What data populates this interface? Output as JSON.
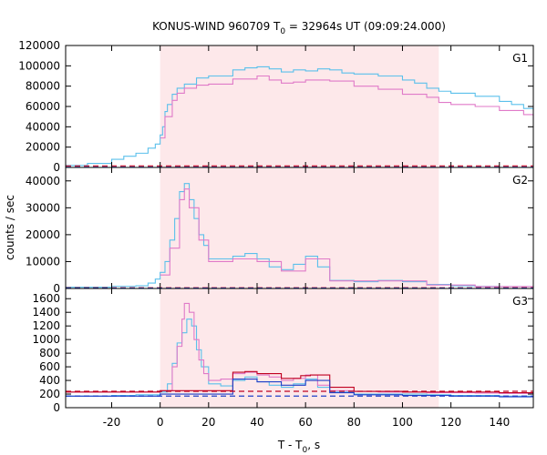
{
  "chart_data": {
    "type": "line",
    "title_main": "KONUS-WIND 960709 T",
    "title_sub": "0",
    "title_rest": " = 32964s UT (09:09:24.000)",
    "xlabel_main": "T - T",
    "xlabel_sub": "0",
    "xlabel_rest": ", s",
    "ylabel": "counts / sec",
    "xlim": [
      -39,
      154
    ],
    "xticks": [
      -20,
      0,
      20,
      40,
      60,
      80,
      100,
      120,
      140
    ],
    "shaded_interval": [
      0,
      115
    ],
    "colors": {
      "shade": "#fde8ea",
      "cyan": "#5bc0eb",
      "pink": "#e07ac8",
      "red": "#c00020",
      "blue": "#2040c8",
      "frame": "#000000"
    },
    "panels": [
      {
        "label": "G1",
        "ylim": [
          0,
          120000
        ],
        "yticks": [
          0,
          20000,
          40000,
          60000,
          80000,
          100000,
          120000
        ],
        "series": [
          {
            "color": "cyan",
            "points": [
              [
                -39,
                2000
              ],
              [
                -30,
                4000
              ],
              [
                -20,
                8000
              ],
              [
                -15,
                11000
              ],
              [
                -10,
                14000
              ],
              [
                -5,
                19000
              ],
              [
                -2,
                23000
              ],
              [
                0,
                32000
              ],
              [
                1,
                40000
              ],
              [
                2,
                55000
              ],
              [
                3,
                62000
              ],
              [
                5,
                72000
              ],
              [
                7,
                78000
              ],
              [
                10,
                82000
              ],
              [
                15,
                88000
              ],
              [
                20,
                90000
              ],
              [
                30,
                96000
              ],
              [
                35,
                98000
              ],
              [
                40,
                99000
              ],
              [
                45,
                97000
              ],
              [
                50,
                94000
              ],
              [
                55,
                96000
              ],
              [
                60,
                95000
              ],
              [
                65,
                97000
              ],
              [
                70,
                96000
              ],
              [
                75,
                93000
              ],
              [
                80,
                92000
              ],
              [
                90,
                90000
              ],
              [
                100,
                86000
              ],
              [
                105,
                83000
              ],
              [
                110,
                78000
              ],
              [
                115,
                75000
              ],
              [
                120,
                73000
              ],
              [
                130,
                70000
              ],
              [
                140,
                65000
              ],
              [
                145,
                62000
              ],
              [
                150,
                58000
              ],
              [
                154,
                56000
              ]
            ]
          },
          {
            "color": "pink",
            "points": [
              [
                0,
                29000
              ],
              [
                2,
                50000
              ],
              [
                5,
                66000
              ],
              [
                7,
                73000
              ],
              [
                10,
                78000
              ],
              [
                15,
                81000
              ],
              [
                20,
                82000
              ],
              [
                30,
                87000
              ],
              [
                40,
                90000
              ],
              [
                45,
                86000
              ],
              [
                50,
                83000
              ],
              [
                55,
                84000
              ],
              [
                60,
                86000
              ],
              [
                70,
                85000
              ],
              [
                80,
                80000
              ],
              [
                90,
                77000
              ],
              [
                100,
                72000
              ],
              [
                110,
                69000
              ],
              [
                115,
                64000
              ],
              [
                120,
                62000
              ],
              [
                130,
                60000
              ],
              [
                140,
                56000
              ],
              [
                150,
                52000
              ],
              [
                154,
                47000
              ]
            ]
          },
          {
            "color": "red",
            "points": [
              [
                -39,
                1500
              ],
              [
                154,
                1500
              ]
            ],
            "dashed": true
          },
          {
            "color": "blue",
            "points": [
              [
                -39,
                300
              ],
              [
                154,
                300
              ]
            ],
            "dashed": true
          }
        ]
      },
      {
        "label": "G2",
        "ylim": [
          0,
          45000
        ],
        "yticks": [
          0,
          10000,
          20000,
          30000,
          40000
        ],
        "series": [
          {
            "color": "cyan",
            "points": [
              [
                -39,
                500
              ],
              [
                -20,
                800
              ],
              [
                -10,
                1000
              ],
              [
                -5,
                2000
              ],
              [
                -2,
                3500
              ],
              [
                0,
                6000
              ],
              [
                2,
                10000
              ],
              [
                4,
                18000
              ],
              [
                6,
                26000
              ],
              [
                8,
                36000
              ],
              [
                10,
                39000
              ],
              [
                12,
                33000
              ],
              [
                14,
                26000
              ],
              [
                16,
                20000
              ],
              [
                18,
                16000
              ],
              [
                20,
                11000
              ],
              [
                25,
                11000
              ],
              [
                30,
                12000
              ],
              [
                35,
                13000
              ],
              [
                40,
                11000
              ],
              [
                45,
                8000
              ],
              [
                50,
                7000
              ],
              [
                55,
                9000
              ],
              [
                60,
                12000
              ],
              [
                65,
                8000
              ],
              [
                70,
                3000
              ],
              [
                80,
                2500
              ],
              [
                90,
                3000
              ],
              [
                100,
                2500
              ],
              [
                110,
                1500
              ],
              [
                120,
                1000
              ],
              [
                130,
                800
              ],
              [
                140,
                700
              ],
              [
                154,
                600
              ]
            ]
          },
          {
            "color": "pink",
            "points": [
              [
                0,
                5000
              ],
              [
                4,
                15000
              ],
              [
                8,
                33000
              ],
              [
                10,
                37000
              ],
              [
                12,
                30000
              ],
              [
                16,
                18000
              ],
              [
                20,
                10000
              ],
              [
                30,
                11000
              ],
              [
                40,
                10000
              ],
              [
                50,
                6500
              ],
              [
                60,
                11000
              ],
              [
                70,
                2800
              ],
              [
                90,
                2800
              ],
              [
                110,
                1300
              ],
              [
                130,
                700
              ],
              [
                154,
                500
              ]
            ]
          },
          {
            "color": "red",
            "points": [
              [
                -39,
                250
              ],
              [
                154,
                250
              ]
            ],
            "dashed": true
          },
          {
            "color": "blue",
            "points": [
              [
                -39,
                120
              ],
              [
                154,
                120
              ]
            ],
            "dashed": true
          }
        ]
      },
      {
        "label": "G3",
        "ylim": [
          0,
          1750
        ],
        "yticks": [
          0,
          200,
          400,
          600,
          800,
          1000,
          1200,
          1400,
          1600
        ],
        "series": [
          {
            "color": "cyan",
            "points": [
              [
                -39,
                170
              ],
              [
                -20,
                180
              ],
              [
                -10,
                190
              ],
              [
                0,
                230
              ],
              [
                3,
                350
              ],
              [
                5,
                650
              ],
              [
                7,
                950
              ],
              [
                9,
                1100
              ],
              [
                11,
                1300
              ],
              [
                13,
                1200
              ],
              [
                15,
                850
              ],
              [
                17,
                600
              ],
              [
                20,
                350
              ],
              [
                25,
                320
              ],
              [
                30,
                400
              ],
              [
                35,
                450
              ],
              [
                40,
                380
              ],
              [
                45,
                330
              ],
              [
                50,
                300
              ],
              [
                55,
                350
              ],
              [
                60,
                420
              ],
              [
                65,
                300
              ],
              [
                70,
                230
              ],
              [
                80,
                200
              ],
              [
                90,
                200
              ],
              [
                100,
                200
              ],
              [
                110,
                190
              ],
              [
                120,
                180
              ],
              [
                130,
                180
              ],
              [
                140,
                170
              ],
              [
                154,
                170
              ]
            ]
          },
          {
            "color": "pink",
            "points": [
              [
                -39,
                230
              ],
              [
                -10,
                230
              ],
              [
                0,
                250
              ],
              [
                5,
                600
              ],
              [
                7,
                900
              ],
              [
                9,
                1300
              ],
              [
                10,
                1530
              ],
              [
                12,
                1400
              ],
              [
                14,
                1000
              ],
              [
                16,
                700
              ],
              [
                18,
                500
              ],
              [
                20,
                400
              ],
              [
                25,
                420
              ],
              [
                30,
                500
              ],
              [
                35,
                520
              ],
              [
                40,
                480
              ],
              [
                45,
                450
              ],
              [
                50,
                400
              ],
              [
                55,
                430
              ],
              [
                60,
                480
              ],
              [
                65,
                330
              ],
              [
                70,
                250
              ],
              [
                80,
                240
              ],
              [
                90,
                230
              ],
              [
                100,
                230
              ],
              [
                110,
                220
              ],
              [
                120,
                220
              ],
              [
                130,
                215
              ],
              [
                140,
                210
              ],
              [
                154,
                210
              ]
            ]
          },
          {
            "color": "red",
            "points": [
              [
                -39,
                230
              ],
              [
                -20,
                230
              ],
              [
                0,
                250
              ],
              [
                30,
                520
              ],
              [
                35,
                530
              ],
              [
                40,
                500
              ],
              [
                50,
                430
              ],
              [
                58,
                470
              ],
              [
                62,
                480
              ],
              [
                70,
                300
              ],
              [
                80,
                240
              ],
              [
                100,
                230
              ],
              [
                120,
                230
              ],
              [
                140,
                220
              ],
              [
                154,
                220
              ]
            ]
          },
          {
            "color": "blue",
            "points": [
              [
                -39,
                170
              ],
              [
                -20,
                170
              ],
              [
                0,
                200
              ],
              [
                30,
                420
              ],
              [
                40,
                380
              ],
              [
                50,
                330
              ],
              [
                60,
                400
              ],
              [
                70,
                220
              ],
              [
                80,
                190
              ],
              [
                100,
                180
              ],
              [
                120,
                170
              ],
              [
                140,
                160
              ],
              [
                154,
                160
              ]
            ]
          },
          {
            "color": "red",
            "points": [
              [
                -39,
                240
              ],
              [
                154,
                240
              ]
            ],
            "dashed": true
          },
          {
            "color": "blue",
            "points": [
              [
                -39,
                170
              ],
              [
                154,
                170
              ]
            ],
            "dashed": true
          }
        ]
      }
    ]
  }
}
